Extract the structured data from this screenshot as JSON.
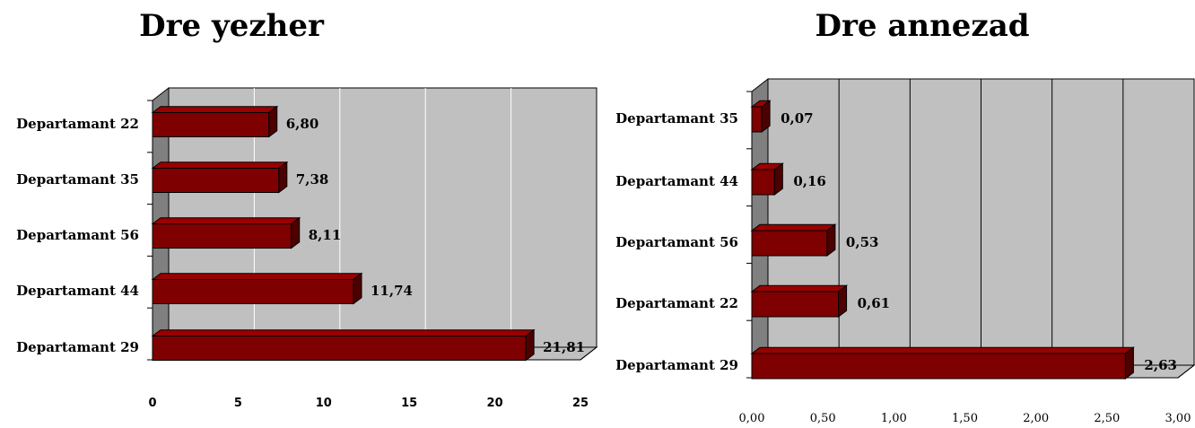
{
  "colors": {
    "bar_front": "#7f0000",
    "bar_top": "#990000",
    "bar_side": "#4d0000",
    "wall": "#c0c0c0",
    "side_wall": "#808080",
    "floor": "#c0c0c0",
    "grid_left": "#ffffff",
    "grid_right": "#000000"
  },
  "chart_data": [
    {
      "type": "bar",
      "orientation": "horizontal",
      "title": "Dre yezher",
      "categories": [
        "Departamant 22",
        "Departamant 35",
        "Departamant 56",
        "Departamant 44",
        "Departamant 29"
      ],
      "values": [
        6.8,
        7.38,
        8.11,
        11.74,
        21.81
      ],
      "data_labels": [
        "6,80",
        "7,38",
        "8,11",
        "11,74",
        "21,81"
      ],
      "xlim": [
        0,
        25
      ],
      "ticks": [
        "0",
        "5",
        "10",
        "15",
        "20",
        "25"
      ],
      "grid": true
    },
    {
      "type": "bar",
      "orientation": "horizontal",
      "title": "Dre annezad",
      "categories": [
        "Departamant 35",
        "Departamant 44",
        "Departamant 56",
        "Departamant 22",
        "Departamant 29"
      ],
      "values": [
        0.07,
        0.16,
        0.53,
        0.61,
        2.63
      ],
      "data_labels": [
        "0,07",
        "0,16",
        "0,53",
        "0,61",
        "2,63"
      ],
      "xlim": [
        0,
        3
      ],
      "ticks": [
        "0,00",
        "0,50",
        "1,00",
        "1,50",
        "2,00",
        "2,50",
        "3,00"
      ],
      "grid": true
    }
  ]
}
